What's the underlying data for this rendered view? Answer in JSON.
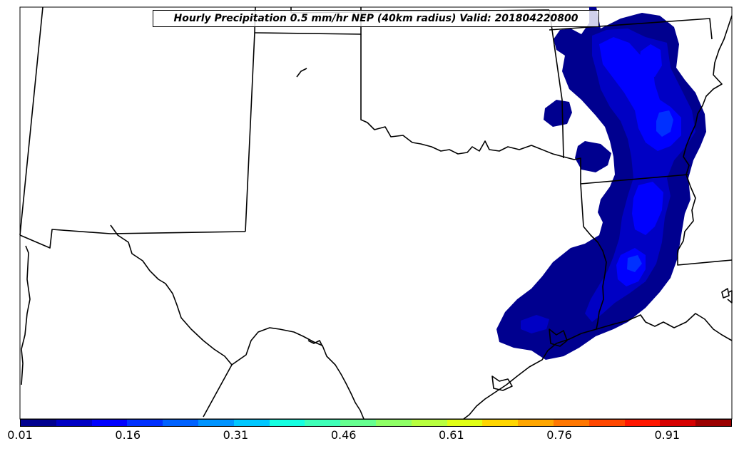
{
  "title": "Hourly Precipitation 0.5 mm/hr NEP (40km radius) Valid: 201804220800",
  "map": {
    "background": "#ffffff",
    "boundary_color": "#000000",
    "precip_levels": [
      {
        "level": "0.01",
        "color": "#00008f"
      },
      {
        "level": "0.06",
        "color": "#0000c4"
      },
      {
        "level": "0.11",
        "color": "#0000ff"
      },
      {
        "level": "0.16",
        "color": "#0030ff"
      }
    ]
  },
  "colorbar": {
    "colors": [
      "#00008f",
      "#0000c4",
      "#0000ff",
      "#0030ff",
      "#0062ff",
      "#0094ff",
      "#00c7ff",
      "#16ffe1",
      "#3fffb8",
      "#66ff90",
      "#8fff66",
      "#b8ff3f",
      "#e1ff16",
      "#ffd600",
      "#ffa600",
      "#ff7700",
      "#ff4700",
      "#ff1700",
      "#d60000",
      "#9b0000"
    ],
    "tick_labels": [
      "0.01",
      "0.16",
      "0.31",
      "0.46",
      "0.61",
      "0.76",
      "0.91"
    ],
    "min": 0.01,
    "max": 1.0
  }
}
